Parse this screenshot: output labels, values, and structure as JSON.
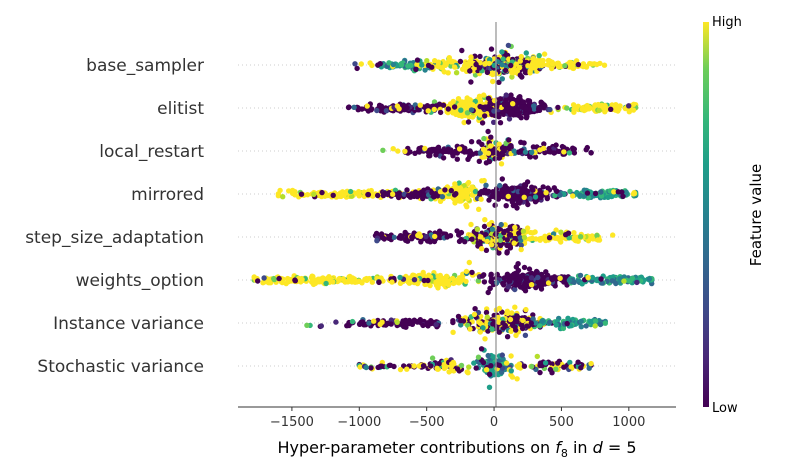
{
  "chart_data": {
    "type": "scatter",
    "subtype": "beeswarm",
    "xlabel": "Hyper-parameter contributions on f8 in d = 5",
    "xlabel_parts": {
      "prefix": "Hyper-parameter contributions on ",
      "f": "f",
      "sub": "8",
      "in": " in ",
      "d": "d",
      "eq": " = 5"
    },
    "xlim": [
      -1900,
      1350
    ],
    "xticks": [
      -1500,
      -1000,
      -500,
      0,
      500,
      1000
    ],
    "xtick_labels": [
      "−1500",
      "−1000",
      "−500",
      "0",
      "500",
      "1000"
    ],
    "colorbar": {
      "title": "Feature value",
      "high": "High",
      "low": "Low",
      "colormap": "viridis"
    },
    "colors": {
      "low": "#440154",
      "mid": "#21918c",
      "high": "#fde725",
      "zero_line": "#999999",
      "row_line": "#cccccc"
    },
    "features": [
      {
        "name": "base_sampler",
        "range": [
          -1050,
          880
        ],
        "clusters": [
          {
            "c": 80,
            "w": 260,
            "n": 260,
            "v": "mix"
          },
          {
            "c": -650,
            "w": 200,
            "n": 55,
            "v": "mid"
          },
          {
            "c": 500,
            "w": 250,
            "n": 60,
            "v": "high"
          },
          {
            "c": -350,
            "w": 200,
            "n": 50,
            "v": "high"
          }
        ]
      },
      {
        "name": "elitist",
        "range": [
          -1080,
          1050
        ],
        "clusters": [
          {
            "c": -180,
            "w": 180,
            "n": 200,
            "v": "high"
          },
          {
            "c": 150,
            "w": 220,
            "n": 200,
            "v": "low"
          },
          {
            "c": -700,
            "w": 320,
            "n": 90,
            "v": "low"
          },
          {
            "c": 800,
            "w": 250,
            "n": 100,
            "v": "high"
          }
        ]
      },
      {
        "name": "local_restart",
        "range": [
          -840,
          720
        ],
        "clusters": [
          {
            "c": 0,
            "w": 110,
            "n": 90,
            "v": "mix"
          },
          {
            "c": -350,
            "w": 300,
            "n": 60,
            "v": "low"
          },
          {
            "c": 350,
            "w": 300,
            "n": 60,
            "v": "low"
          }
        ]
      },
      {
        "name": "mirrored",
        "range": [
          -1600,
          1050
        ],
        "clusters": [
          {
            "c": -280,
            "w": 160,
            "n": 170,
            "v": "high"
          },
          {
            "c": 200,
            "w": 250,
            "n": 200,
            "v": "low"
          },
          {
            "c": -1050,
            "w": 460,
            "n": 130,
            "v": "high"
          },
          {
            "c": 800,
            "w": 250,
            "n": 90,
            "v": "mid"
          },
          {
            "c": -550,
            "w": 300,
            "n": 60,
            "v": "low"
          }
        ]
      },
      {
        "name": "step_size_adaptation",
        "range": [
          -880,
          880
        ],
        "clusters": [
          {
            "c": 20,
            "w": 200,
            "n": 240,
            "v": "mix"
          },
          {
            "c": -550,
            "w": 280,
            "n": 70,
            "v": "low"
          },
          {
            "c": 550,
            "w": 280,
            "n": 70,
            "v": "high"
          }
        ]
      },
      {
        "name": "weights_option",
        "range": [
          -1780,
          1170
        ],
        "clusters": [
          {
            "c": -450,
            "w": 250,
            "n": 150,
            "v": "high"
          },
          {
            "c": 250,
            "w": 280,
            "n": 220,
            "v": "low"
          },
          {
            "c": -1250,
            "w": 480,
            "n": 150,
            "v": "high"
          },
          {
            "c": 850,
            "w": 300,
            "n": 110,
            "v": "mid"
          }
        ]
      },
      {
        "name": "Instance variance",
        "range": [
          -1400,
          850
        ],
        "clusters": [
          {
            "c": 80,
            "w": 260,
            "n": 220,
            "v": "mix"
          },
          {
            "c": -700,
            "w": 400,
            "n": 90,
            "v": "low"
          },
          {
            "c": 600,
            "w": 250,
            "n": 60,
            "v": "mid"
          }
        ]
      },
      {
        "name": "Stochastic variance",
        "range": [
          -1000,
          720
        ],
        "clusters": [
          {
            "c": 0,
            "w": 90,
            "n": 110,
            "v": "mid"
          },
          {
            "c": -450,
            "w": 450,
            "n": 70,
            "v": "mix"
          },
          {
            "c": 400,
            "w": 320,
            "n": 60,
            "v": "mix"
          }
        ]
      }
    ]
  }
}
